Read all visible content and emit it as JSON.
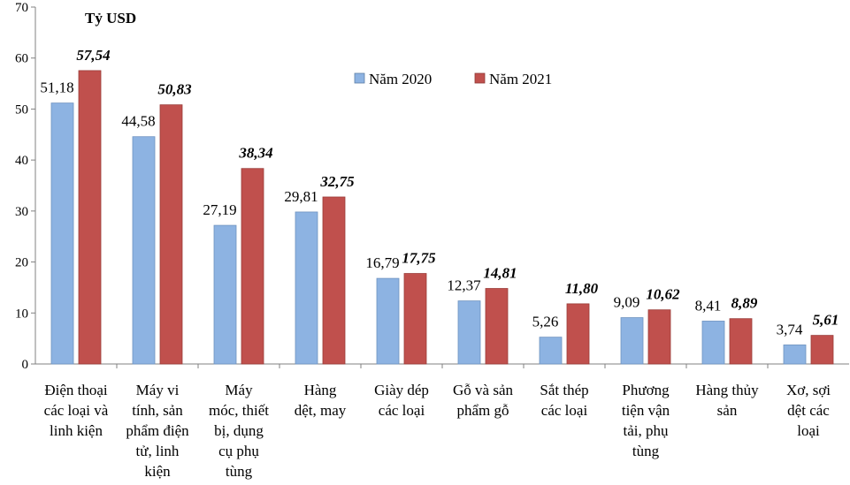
{
  "chart_data": {
    "type": "bar",
    "title": "",
    "ylabel": "Tỷ USD",
    "xlabel": "",
    "ylim": [
      0,
      70
    ],
    "yticks": [
      0,
      10,
      20,
      30,
      40,
      50,
      60,
      70
    ],
    "grid": false,
    "legend_position": "top-center",
    "categories": [
      [
        "Điện thoại",
        "các loại và",
        "linh kiện"
      ],
      [
        "Máy vi",
        "tính, sản",
        "phẩm điện",
        "tử,  linh",
        "kiện"
      ],
      [
        "Máy",
        "móc, thiết",
        "bị, dụng",
        "cụ phụ",
        "tùng"
      ],
      [
        "Hàng",
        "dệt, may"
      ],
      [
        "Giày dép",
        "các loại"
      ],
      [
        "Gỗ và sản",
        "phẩm gỗ"
      ],
      [
        "Sắt thép",
        "các loại"
      ],
      [
        "Phương",
        "tiện vận",
        "tải, phụ",
        "tùng"
      ],
      [
        "Hàng thủy",
        "sản"
      ],
      [
        "Xơ, sợi",
        "dệt các",
        "loại"
      ]
    ],
    "series": [
      {
        "name": "Năm 2020",
        "color": "#8DB3E2",
        "values": [
          51.18,
          44.58,
          27.19,
          29.81,
          16.79,
          12.37,
          5.26,
          9.09,
          8.41,
          3.74
        ],
        "labels": [
          "51,18",
          "44,58",
          "27,19",
          "29,81",
          "16,79",
          "12,37",
          "5,26",
          "9,09",
          "8,41",
          "3,74"
        ]
      },
      {
        "name": "Năm 2021",
        "color": "#C0504D",
        "values": [
          57.54,
          50.83,
          38.34,
          32.75,
          17.75,
          14.81,
          11.8,
          10.62,
          8.89,
          5.61
        ],
        "labels": [
          "57,54",
          "50,83",
          "38,34",
          "32,75",
          "17,75",
          "14,81",
          "11,80",
          "10,62",
          "8,89",
          "5,61"
        ]
      }
    ]
  }
}
